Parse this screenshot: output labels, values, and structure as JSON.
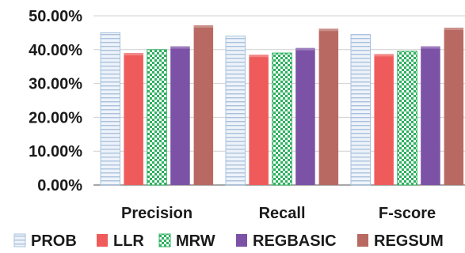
{
  "chart_data": {
    "type": "bar",
    "categories": [
      "Precision",
      "Recall",
      "F-score"
    ],
    "series": [
      {
        "name": "PROB",
        "values": [
          45.0,
          44.0,
          44.5
        ],
        "color": "#dce7f4",
        "pattern": "horizontal-lines"
      },
      {
        "name": "LLR",
        "values": [
          39.0,
          38.5,
          38.7
        ],
        "color": "#ef5b5b",
        "pattern": "solid"
      },
      {
        "name": "MRW",
        "values": [
          40.0,
          39.0,
          39.5
        ],
        "color": "#3fbf6f",
        "pattern": "checkerboard"
      },
      {
        "name": "REGBASIC",
        "values": [
          41.0,
          40.5,
          41.0
        ],
        "color": "#7b52a6",
        "pattern": "solid"
      },
      {
        "name": "REGSUM",
        "values": [
          47.2,
          46.2,
          46.5
        ],
        "color": "#b86a62",
        "pattern": "solid"
      }
    ],
    "y_ticks": [
      "0.00%",
      "10.00%",
      "20.00%",
      "30.00%",
      "40.00%",
      "50.00%"
    ],
    "ylim": [
      0,
      50
    ],
    "legend_position": "bottom",
    "grid": true
  }
}
